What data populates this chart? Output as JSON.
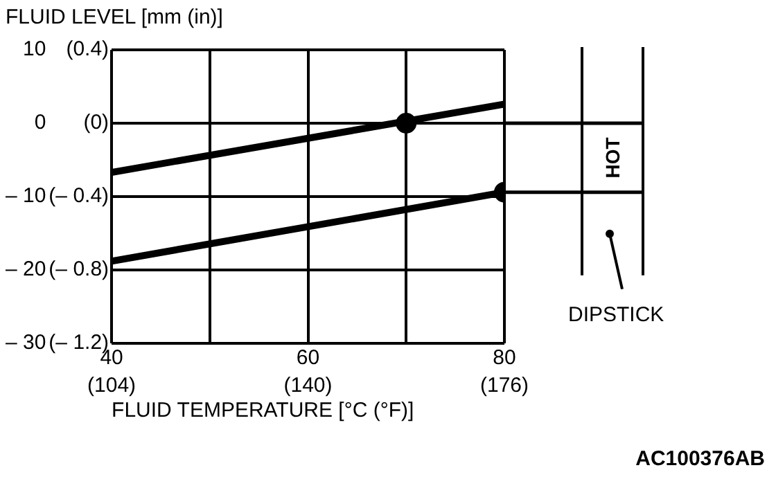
{
  "chart_data": {
    "type": "line",
    "title": "FLUID LEVEL [mm (in)]",
    "xlabel": "FLUID TEMPERATURE [°C (°F)]",
    "annotations": [
      "HOT",
      "DIPSTICK",
      "AC100376AB"
    ],
    "xlim": [
      40,
      80
    ],
    "xticks": [
      40,
      {
        "value": 50,
        "label": null
      },
      60,
      {
        "value": 70,
        "label": null
      },
      80
    ],
    "x2lim": [
      104,
      176
    ],
    "x2ticks": [
      {
        "value": 104,
        "label": "(104)"
      },
      {
        "value": 140,
        "label": "(140)"
      },
      {
        "value": 176,
        "label": "(176)"
      }
    ],
    "ylim": [
      -30,
      10
    ],
    "yticks": [
      {
        "value": -30,
        "label": "– 30"
      },
      {
        "value": -20,
        "label": "– 20"
      },
      {
        "value": -10,
        "label": "– 10"
      },
      0,
      10
    ],
    "y2lim": [
      -1.2,
      0.4
    ],
    "y2ticks": [
      {
        "value": -1.2,
        "label": "(– 1.2)"
      },
      {
        "value": -0.8,
        "label": "(– 0.8)"
      },
      {
        "value": -0.4,
        "label": "(– 0.4)"
      },
      {
        "value": 0,
        "label": "(0)"
      },
      {
        "value": 0.4,
        "label": "(0.4)"
      }
    ],
    "grid": true,
    "legend": false,
    "marker": "none",
    "line_style": "solid",
    "series": [
      {
        "color": "#000000",
        "x": [
          40,
          80
        ],
        "values": [
          -6.7,
          2.6
        ]
      },
      {
        "color": "#000000",
        "x": [
          40,
          80
        ],
        "values": [
          -18.8,
          -9.4
        ]
      },
      {
        "type": "scatter",
        "color": "#000000",
        "marker": "circle",
        "x": [
          70,
          80
        ],
        "values": [
          0,
          -9.4
        ]
      }
    ]
  }
}
